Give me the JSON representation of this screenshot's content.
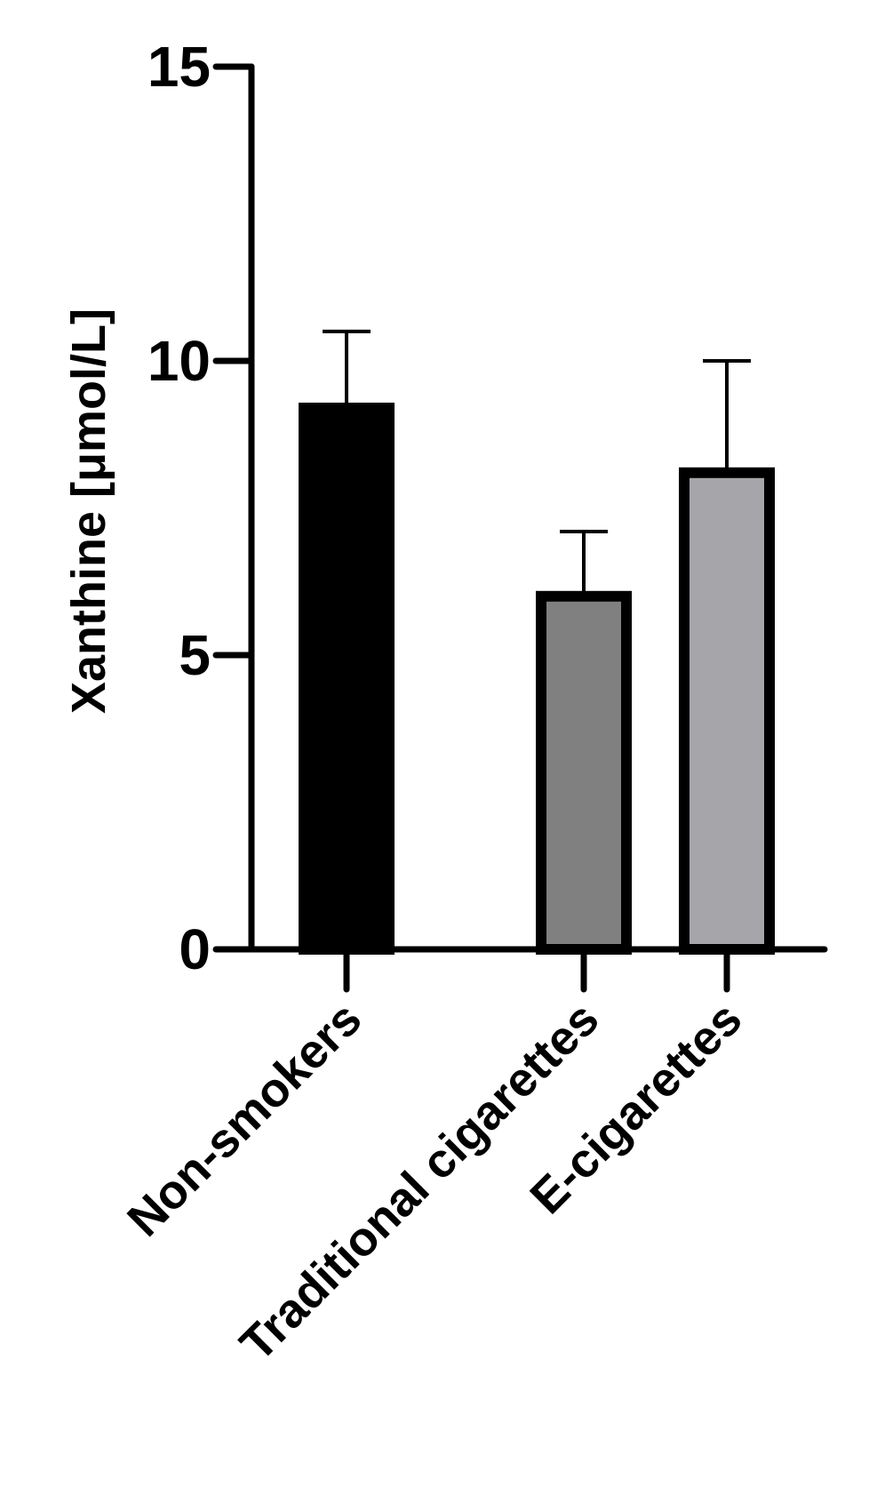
{
  "chart_data": {
    "type": "bar",
    "ylabel": "Xanthine [μmol/L]",
    "ylim": [
      0,
      15
    ],
    "yticks": [
      0,
      5,
      10,
      15
    ],
    "grid": false,
    "categories": [
      "Non-smokers",
      "Traditional cigarettes",
      "E-cigarettes"
    ],
    "values": [
      9.2,
      6.0,
      8.1
    ],
    "error_upper": [
      10.5,
      7.1,
      10.0
    ],
    "colors": [
      "#000000",
      "#808080",
      "#a6a6aa"
    ]
  }
}
